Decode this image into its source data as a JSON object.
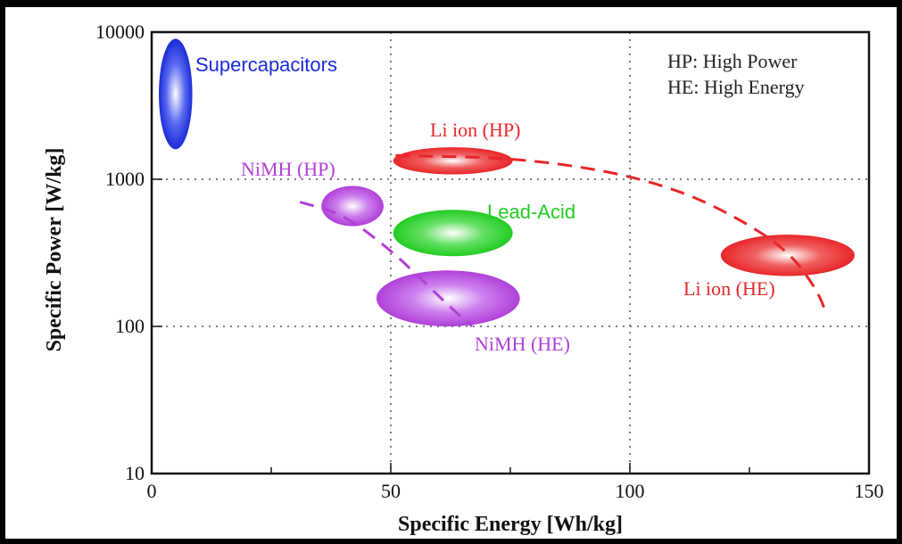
{
  "chart_data": {
    "type": "scatter",
    "xlabel": "Specific Energy [Wh/kg]",
    "ylabel": "Specific Power [W/kg]",
    "xlim": [
      0,
      150
    ],
    "ylim": [
      10,
      10000
    ],
    "y_scale": "log",
    "x_ticks": [
      "0",
      "50",
      "100",
      "150"
    ],
    "y_ticks": [
      "10",
      "100",
      "1000",
      "10000"
    ],
    "grid": "dotted at 50 and 100 Wh/kg, 100 and 1000 W/kg",
    "legend_note": [
      "HP: High Power",
      "HE: High Energy"
    ],
    "colors": {
      "supercap": "#1a2bd8",
      "nimh": "#b040d8",
      "liion": "#e8262a",
      "lead": "#22cc22"
    },
    "regions": [
      {
        "label": "Supercapacitors",
        "x": 5,
        "y_min": 1600,
        "y_max": 9000,
        "x_half_width": 3.5,
        "color": "#1a2bd8"
      },
      {
        "label": "NiMH (HP)",
        "x": 42,
        "y_min": 480,
        "y_max": 900,
        "x_half_width": 6.5,
        "color": "#b040d8"
      },
      {
        "label": "NiMH (HE)",
        "x": 62,
        "y_min": 100,
        "y_max": 240,
        "x_half_width": 15,
        "color": "#b040d8"
      },
      {
        "label": "Lead-Acid",
        "x": 63,
        "y_min": 300,
        "y_max": 620,
        "x_half_width": 12.5,
        "color": "#22cc22"
      },
      {
        "label": "Li ion (HP)",
        "x": 63,
        "y_min": 1080,
        "y_max": 1650,
        "x_half_width": 12.5,
        "color": "#e8262a"
      },
      {
        "label": "Li ion (HE)",
        "x": 133,
        "y_min": 220,
        "y_max": 420,
        "x_half_width": 14,
        "color": "#e8262a"
      }
    ],
    "trend_lines": [
      {
        "name": "Li ion",
        "color": "#e8262a",
        "points": [
          [
            51,
            1450
          ],
          [
            75,
            1400
          ],
          [
            95,
            1150
          ],
          [
            110,
            850
          ],
          [
            122,
            560
          ],
          [
            133,
            330
          ],
          [
            139,
            180
          ],
          [
            141,
            125
          ]
        ]
      },
      {
        "name": "NiMH",
        "color": "#b040d8",
        "points": [
          [
            31,
            700
          ],
          [
            40,
            580
          ],
          [
            50,
            330
          ],
          [
            57,
            200
          ],
          [
            63,
            130
          ],
          [
            67,
            100
          ]
        ]
      }
    ]
  }
}
